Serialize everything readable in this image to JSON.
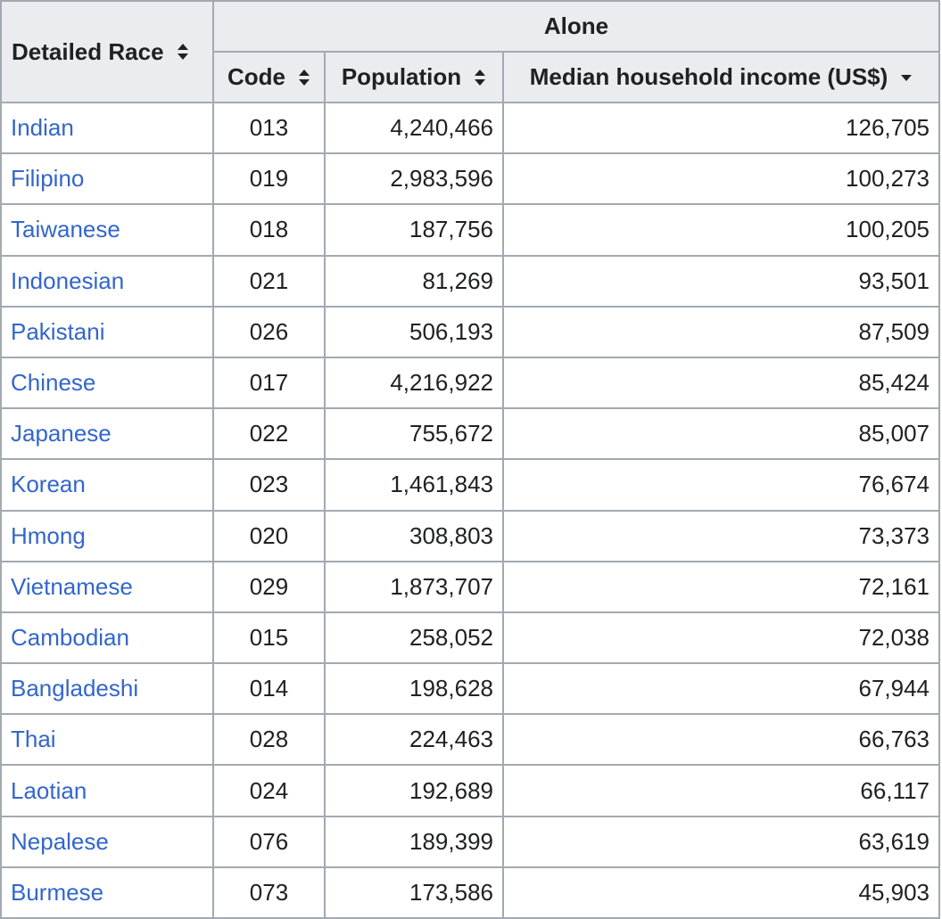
{
  "table": {
    "headers": {
      "race": "Detailed Race",
      "group": "Alone",
      "code": "Code",
      "population": "Population",
      "income": "Median household income (US$)"
    },
    "sort": {
      "race": "sort-both-icon",
      "code": "sort-both-icon",
      "population": "sort-both-icon",
      "income": "sort-descending-icon"
    },
    "colors": {
      "header_bg": "#eaecf0",
      "border": "#a2a9b1",
      "link": "#3366cc",
      "text": "#202122"
    },
    "rows": [
      {
        "race": "Indian",
        "code": "013",
        "population": "4,240,466",
        "income": "126,705"
      },
      {
        "race": "Filipino",
        "code": "019",
        "population": "2,983,596",
        "income": "100,273"
      },
      {
        "race": "Taiwanese",
        "code": "018",
        "population": "187,756",
        "income": "100,205"
      },
      {
        "race": "Indonesian",
        "code": "021",
        "population": "81,269",
        "income": "93,501"
      },
      {
        "race": "Pakistani",
        "code": "026",
        "population": "506,193",
        "income": "87,509"
      },
      {
        "race": "Chinese",
        "code": "017",
        "population": "4,216,922",
        "income": "85,424"
      },
      {
        "race": "Japanese",
        "code": "022",
        "population": "755,672",
        "income": "85,007"
      },
      {
        "race": "Korean",
        "code": "023",
        "population": "1,461,843",
        "income": "76,674"
      },
      {
        "race": "Hmong",
        "code": "020",
        "population": "308,803",
        "income": "73,373"
      },
      {
        "race": "Vietnamese",
        "code": "029",
        "population": "1,873,707",
        "income": "72,161"
      },
      {
        "race": "Cambodian",
        "code": "015",
        "population": "258,052",
        "income": "72,038"
      },
      {
        "race": "Bangladeshi",
        "code": "014",
        "population": "198,628",
        "income": "67,944"
      },
      {
        "race": "Thai",
        "code": "028",
        "population": "224,463",
        "income": "66,763"
      },
      {
        "race": "Laotian",
        "code": "024",
        "population": "192,689",
        "income": "66,117"
      },
      {
        "race": "Nepalese",
        "code": "076",
        "population": "189,399",
        "income": "63,619"
      },
      {
        "race": "Burmese",
        "code": "073",
        "population": "173,586",
        "income": "45,903"
      }
    ]
  }
}
